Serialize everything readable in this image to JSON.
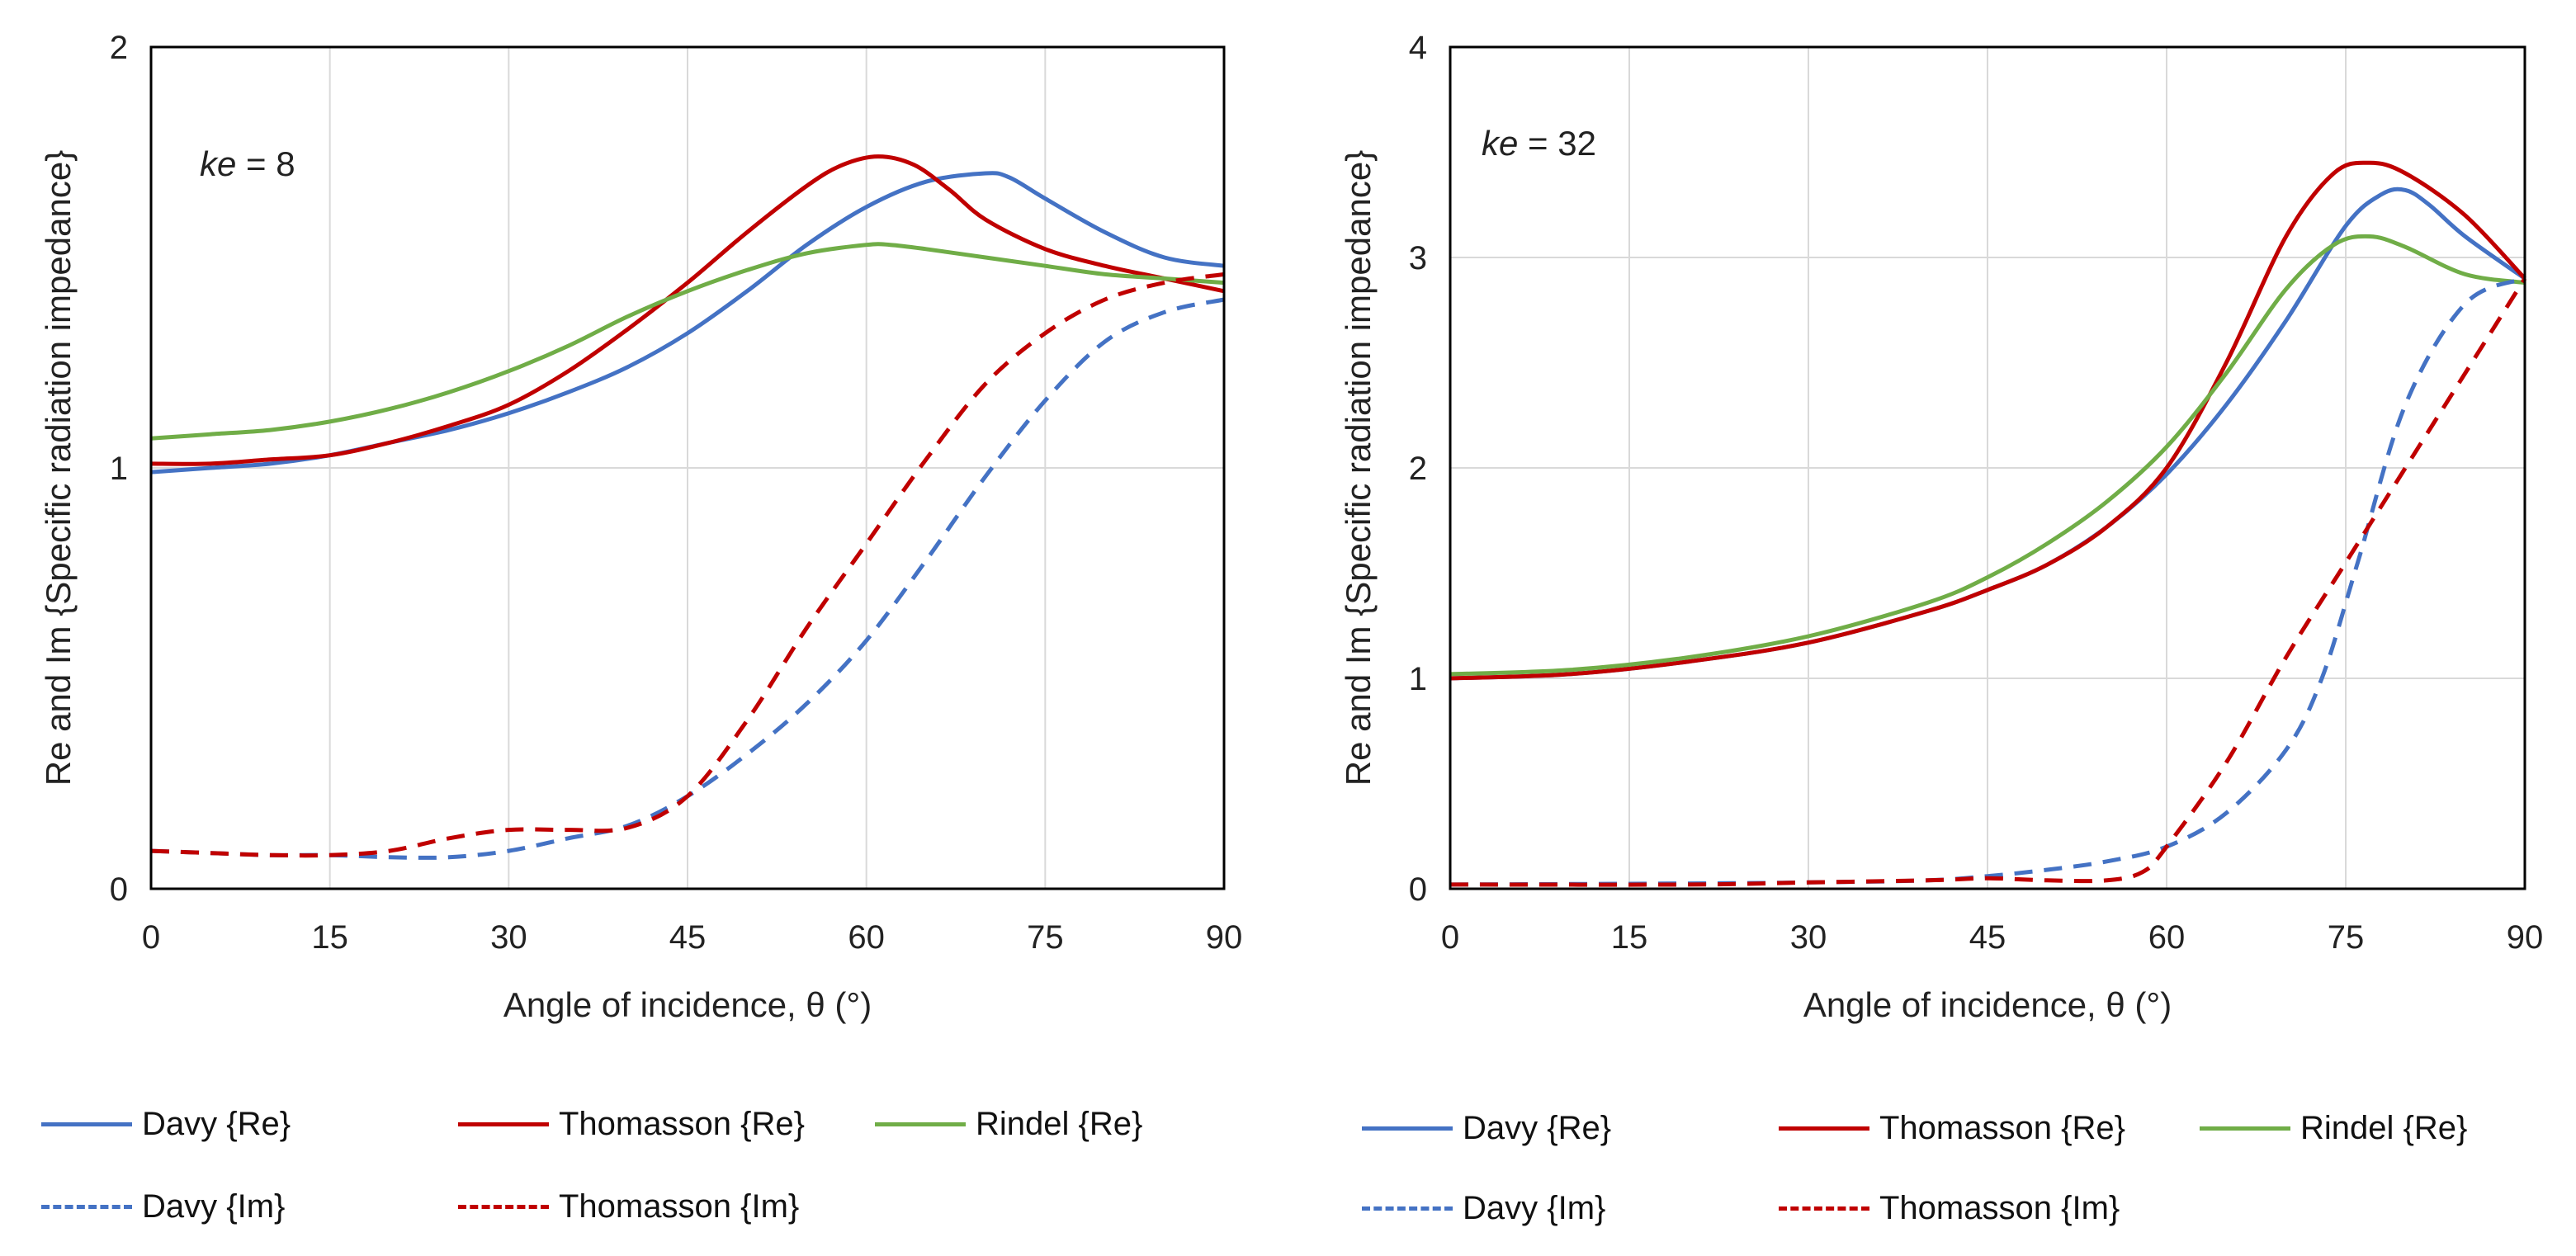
{
  "colors": {
    "davy": "#4472C4",
    "thomasson": "#C00000",
    "rindel": "#70AD47",
    "grid": "#d9d9d9",
    "axis": "#000000"
  },
  "chart_data": [
    {
      "type": "line",
      "annotation": {
        "italic": "ke",
        "rest": " = 8"
      },
      "xlabel": "Angle of incidence, θ (°)",
      "ylabel": "Re and Im {Specific radiation impedance}",
      "xlim": [
        0,
        90
      ],
      "ylim": [
        0,
        2
      ],
      "xticks": [
        0,
        15,
        30,
        45,
        60,
        75,
        90
      ],
      "yticks": [
        0,
        1,
        2
      ],
      "legend": [
        "Davy {Re}",
        "Thomasson {Re}",
        "Rindel {Re}",
        "Davy {Im}",
        "Thomasson {Im}"
      ],
      "series": [
        {
          "name": "Davy {Re}",
          "style": "solid",
          "color_key": "davy",
          "x": [
            0,
            5,
            10,
            15,
            20,
            25,
            30,
            35,
            40,
            45,
            50,
            55,
            60,
            65,
            70,
            72,
            75,
            80,
            85,
            90
          ],
          "y": [
            0.99,
            1.0,
            1.01,
            1.03,
            1.06,
            1.09,
            1.13,
            1.18,
            1.24,
            1.32,
            1.42,
            1.53,
            1.62,
            1.68,
            1.7,
            1.69,
            1.64,
            1.56,
            1.5,
            1.48
          ]
        },
        {
          "name": "Thomasson {Re}",
          "style": "solid",
          "color_key": "thomasson",
          "x": [
            0,
            5,
            10,
            15,
            20,
            25,
            30,
            35,
            40,
            45,
            50,
            55,
            58,
            61,
            64,
            67,
            70,
            75,
            80,
            85,
            90
          ],
          "y": [
            1.01,
            1.01,
            1.02,
            1.03,
            1.06,
            1.1,
            1.15,
            1.23,
            1.33,
            1.44,
            1.56,
            1.67,
            1.72,
            1.74,
            1.72,
            1.66,
            1.59,
            1.52,
            1.48,
            1.45,
            1.42
          ]
        },
        {
          "name": "Rindel {Re}",
          "style": "solid",
          "color_key": "rindel",
          "x": [
            0,
            5,
            10,
            15,
            20,
            25,
            30,
            35,
            40,
            45,
            50,
            55,
            60,
            62,
            65,
            70,
            75,
            80,
            85,
            90
          ],
          "y": [
            1.07,
            1.08,
            1.09,
            1.11,
            1.14,
            1.18,
            1.23,
            1.29,
            1.36,
            1.42,
            1.47,
            1.51,
            1.53,
            1.53,
            1.52,
            1.5,
            1.48,
            1.46,
            1.45,
            1.44
          ]
        },
        {
          "name": "Davy {Im}",
          "style": "dashed",
          "color_key": "davy",
          "x": [
            0,
            5,
            10,
            15,
            20,
            25,
            30,
            35,
            40,
            45,
            50,
            55,
            60,
            65,
            70,
            75,
            80,
            85,
            90
          ],
          "y": [
            0.09,
            0.085,
            0.08,
            0.08,
            0.075,
            0.075,
            0.09,
            0.12,
            0.15,
            0.22,
            0.32,
            0.44,
            0.59,
            0.78,
            0.98,
            1.16,
            1.3,
            1.37,
            1.4
          ]
        },
        {
          "name": "Thomasson {Im}",
          "style": "dashed",
          "color_key": "thomasson",
          "x": [
            0,
            5,
            10,
            15,
            20,
            25,
            30,
            35,
            40,
            45,
            50,
            55,
            60,
            65,
            70,
            75,
            80,
            85,
            90
          ],
          "y": [
            0.09,
            0.085,
            0.08,
            0.08,
            0.09,
            0.12,
            0.14,
            0.14,
            0.145,
            0.22,
            0.4,
            0.62,
            0.82,
            1.02,
            1.2,
            1.32,
            1.4,
            1.44,
            1.46
          ]
        }
      ]
    },
    {
      "type": "line",
      "annotation": {
        "italic": "ke",
        "rest": " = 32"
      },
      "xlabel": "Angle of incidence, θ (°)",
      "ylabel": "Re and Im {Specific radiation impedance}",
      "xlim": [
        0,
        90
      ],
      "ylim": [
        0,
        4
      ],
      "xticks": [
        0,
        15,
        30,
        45,
        60,
        75,
        90
      ],
      "yticks": [
        0,
        1,
        2,
        3,
        4
      ],
      "legend": [
        "Davy {Re}",
        "Thomasson {Re}",
        "Rindel {Re}",
        "Davy {Im}",
        "Thomasson {Im}"
      ],
      "series": [
        {
          "name": "Davy {Re}",
          "style": "solid",
          "color_key": "davy",
          "x": [
            0,
            10,
            20,
            30,
            40,
            45,
            50,
            55,
            60,
            65,
            70,
            75,
            78,
            80,
            82,
            85,
            90
          ],
          "y": [
            1.0,
            1.02,
            1.08,
            1.17,
            1.32,
            1.42,
            1.54,
            1.72,
            1.97,
            2.3,
            2.7,
            3.15,
            3.3,
            3.32,
            3.25,
            3.1,
            2.9
          ]
        },
        {
          "name": "Thomasson {Re}",
          "style": "solid",
          "color_key": "thomasson",
          "x": [
            0,
            10,
            20,
            30,
            40,
            45,
            50,
            55,
            60,
            65,
            70,
            74,
            77,
            80,
            85,
            90
          ],
          "y": [
            1.0,
            1.02,
            1.08,
            1.17,
            1.32,
            1.42,
            1.54,
            1.72,
            2.0,
            2.5,
            3.1,
            3.4,
            3.45,
            3.4,
            3.2,
            2.9
          ]
        },
        {
          "name": "Rindel {Re}",
          "style": "solid",
          "color_key": "rindel",
          "x": [
            0,
            10,
            20,
            30,
            40,
            45,
            50,
            55,
            60,
            65,
            70,
            74,
            77,
            80,
            85,
            90
          ],
          "y": [
            1.02,
            1.04,
            1.1,
            1.2,
            1.36,
            1.48,
            1.64,
            1.84,
            2.1,
            2.45,
            2.85,
            3.06,
            3.1,
            3.05,
            2.92,
            2.88
          ]
        },
        {
          "name": "Davy {Im}",
          "style": "dashed",
          "color_key": "davy",
          "x": [
            0,
            20,
            30,
            40,
            45,
            50,
            55,
            60,
            65,
            70,
            73,
            76,
            80,
            85,
            90
          ],
          "y": [
            0.02,
            0.025,
            0.03,
            0.04,
            0.06,
            0.09,
            0.13,
            0.2,
            0.36,
            0.66,
            1.0,
            1.55,
            2.3,
            2.78,
            2.9
          ]
        },
        {
          "name": "Thomasson {Im}",
          "style": "dashed",
          "color_key": "thomasson",
          "x": [
            0,
            20,
            30,
            40,
            45,
            50,
            55,
            58,
            60,
            65,
            70,
            75,
            80,
            85,
            90
          ],
          "y": [
            0.02,
            0.02,
            0.03,
            0.04,
            0.05,
            0.04,
            0.04,
            0.08,
            0.2,
            0.6,
            1.1,
            1.55,
            2.0,
            2.45,
            2.9
          ]
        }
      ]
    }
  ]
}
